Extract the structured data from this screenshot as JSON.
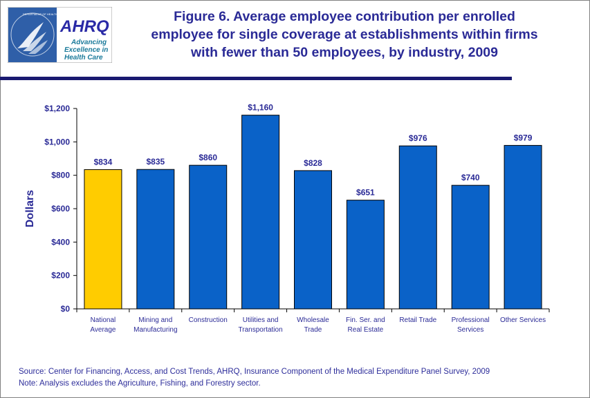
{
  "logo": {
    "seal_text": "DEPARTMENT OF HEALTH & HUMAN SERVICES • USA",
    "brand": "AHRQ",
    "tagline": [
      "Advancing",
      "Excellence in",
      "Health Care"
    ]
  },
  "title_lines": [
    "Figure 6. Average employee contribution per enrolled",
    "employee for single coverage at establishments within firms",
    "with fewer than 50 employees, by industry, 2009"
  ],
  "chart_data": {
    "type": "bar",
    "title": "Figure 6. Average employee contribution per enrolled employee for single coverage at establishments within firms with fewer than 50 employees, by industry, 2009",
    "xlabel": "",
    "ylabel": "Dollars",
    "ylim": [
      0,
      1200
    ],
    "yticks": [
      0,
      200,
      400,
      600,
      800,
      1000,
      1200
    ],
    "ytick_labels": [
      "$0",
      "$200",
      "$400",
      "$600",
      "$800",
      "$1,000",
      "$1,200"
    ],
    "grid": false,
    "categories": [
      [
        "National",
        "Average"
      ],
      [
        "Mining and",
        "Manufacturing"
      ],
      [
        "Construction"
      ],
      [
        "Utilities and",
        "Transportation"
      ],
      [
        "Wholesale",
        "Trade"
      ],
      [
        "Fin. Ser. and",
        "Real Estate"
      ],
      [
        "Retail Trade"
      ],
      [
        "Professional",
        "Services"
      ],
      [
        "Other Services"
      ]
    ],
    "values": [
      834,
      835,
      860,
      1160,
      828,
      651,
      976,
      740,
      979
    ],
    "data_labels": [
      "$834",
      "$835",
      "$860",
      "$1,160",
      "$828",
      "$651",
      "$976",
      "$740",
      "$979"
    ],
    "colors": {
      "highlight": "#ffcc00",
      "bar": "#0a62c8",
      "axis": "#000000",
      "text": "#2a2a96"
    },
    "highlight_index": 0
  },
  "footnotes": {
    "source": "Source: Center for Financing, Access, and Cost Trends, AHRQ, Insurance Component of the Medical Expenditure Panel Survey, 2009",
    "note": "Note: Analysis excludes the Agriculture, Fishing, and Forestry sector."
  }
}
